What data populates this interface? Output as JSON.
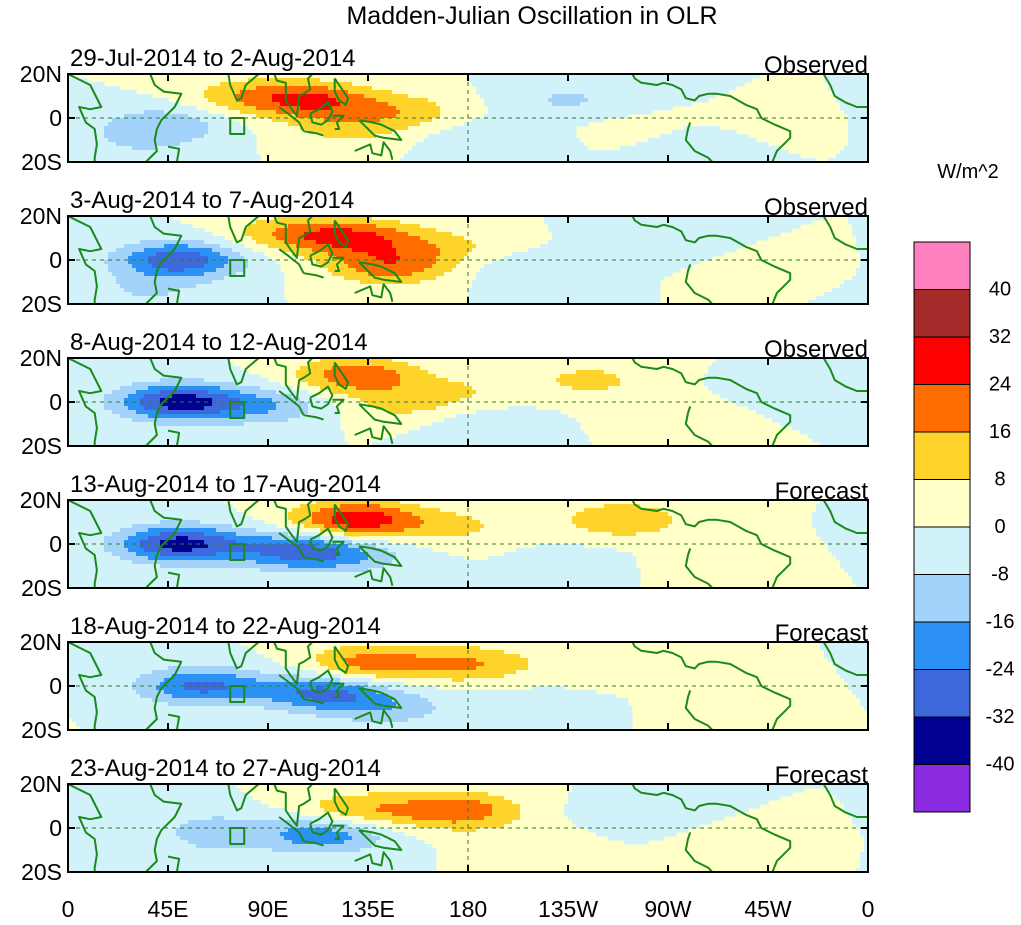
{
  "chart_data": {
    "type": "heatmap",
    "title": "Madden-Julian Oscillation in OLR",
    "units": "W/m^2",
    "x_range": [
      0,
      360
    ],
    "y_range": [
      -20,
      20
    ],
    "x_ticks": [
      "0",
      "45E",
      "90E",
      "135E",
      "180",
      "135W",
      "90W",
      "45W",
      "0"
    ],
    "y_ticks": [
      "20N",
      "0",
      "20S"
    ],
    "colorbar": {
      "levels": [
        "40",
        "32",
        "24",
        "16",
        "8",
        "0",
        "-8",
        "-16",
        "-24",
        "-32",
        "-40"
      ],
      "colors": [
        "#ff7fbf",
        "#a52a2a",
        "#ff0000",
        "#ff6d00",
        "#ffd42a",
        "#ffffc7",
        "#d2f2fa",
        "#a3d2fa",
        "#2c91f5",
        "#3d69dc",
        "#000091",
        "#8a2be2"
      ]
    },
    "panels": [
      {
        "dates": "29-Jul-2014 to 2-Aug-2014",
        "kind": "Observed",
        "anomalies": [
          {
            "lon": 110,
            "lat": 8,
            "value": 22
          },
          {
            "lon": 80,
            "lat": 10,
            "value": 12
          },
          {
            "lon": 150,
            "lat": 3,
            "value": 12
          },
          {
            "lon": 125,
            "lat": -5,
            "value": 9
          },
          {
            "lon": 43,
            "lat": -3,
            "value": -14
          },
          {
            "lon": 30,
            "lat": -12,
            "value": -6
          },
          {
            "lon": 190,
            "lat": -10,
            "value": -8
          },
          {
            "lon": 225,
            "lat": 8,
            "value": -9
          },
          {
            "lon": 290,
            "lat": -15,
            "value": -8
          },
          {
            "lon": 250,
            "lat": -5,
            "value": 3
          },
          {
            "lon": 320,
            "lat": -8,
            "value": 4
          }
        ]
      },
      {
        "dates": "3-Aug-2014 to 7-Aug-2014",
        "kind": "Observed",
        "anomalies": [
          {
            "lon": 100,
            "lat": 12,
            "value": 14
          },
          {
            "lon": 130,
            "lat": 10,
            "value": 22
          },
          {
            "lon": 145,
            "lat": -3,
            "value": 20
          },
          {
            "lon": 170,
            "lat": 6,
            "value": 9
          },
          {
            "lon": 50,
            "lat": 0,
            "value": -30
          },
          {
            "lon": 35,
            "lat": -14,
            "value": -8
          },
          {
            "lon": 200,
            "lat": -4,
            "value": -5
          },
          {
            "lon": 268,
            "lat": 12,
            "value": -6
          },
          {
            "lon": 325,
            "lat": -2,
            "value": 3
          }
        ]
      },
      {
        "dates": "8-Aug-2014 to 12-Aug-2014",
        "kind": "Observed",
        "anomalies": [
          {
            "lon": 130,
            "lat": 12,
            "value": 22
          },
          {
            "lon": 150,
            "lat": -2,
            "value": 9
          },
          {
            "lon": 175,
            "lat": 5,
            "value": 7
          },
          {
            "lon": 50,
            "lat": 0,
            "value": -35
          },
          {
            "lon": 90,
            "lat": -2,
            "value": -14
          },
          {
            "lon": 185,
            "lat": -10,
            "value": -6
          },
          {
            "lon": 235,
            "lat": 10,
            "value": 10
          },
          {
            "lon": 270,
            "lat": -5,
            "value": 5
          },
          {
            "lon": 320,
            "lat": 5,
            "value": -3
          }
        ]
      },
      {
        "dates": "13-Aug-2014 to 17-Aug-2014",
        "kind": "Forecast",
        "anomalies": [
          {
            "lon": 130,
            "lat": 11,
            "value": 30
          },
          {
            "lon": 175,
            "lat": 8,
            "value": 9
          },
          {
            "lon": 50,
            "lat": 0,
            "value": -35
          },
          {
            "lon": 100,
            "lat": -3,
            "value": -22
          },
          {
            "lon": 125,
            "lat": -5,
            "value": -14
          },
          {
            "lon": 250,
            "lat": 11,
            "value": 15
          },
          {
            "lon": 290,
            "lat": -8,
            "value": 5
          },
          {
            "lon": 230,
            "lat": -8,
            "value": -3
          }
        ]
      },
      {
        "dates": "18-Aug-2014 to 22-Aug-2014",
        "kind": "Forecast",
        "anomalies": [
          {
            "lon": 135,
            "lat": 10,
            "value": 20
          },
          {
            "lon": 180,
            "lat": 10,
            "value": 16
          },
          {
            "lon": 60,
            "lat": 0,
            "value": -26
          },
          {
            "lon": 115,
            "lat": -3,
            "value": -26
          },
          {
            "lon": 145,
            "lat": -10,
            "value": -12
          },
          {
            "lon": 240,
            "lat": 10,
            "value": 7
          },
          {
            "lon": 300,
            "lat": -8,
            "value": 4
          },
          {
            "lon": 210,
            "lat": -8,
            "value": -3
          }
        ]
      },
      {
        "dates": "23-Aug-2014 to 27-Aug-2014",
        "kind": "Forecast",
        "anomalies": [
          {
            "lon": 175,
            "lat": 8,
            "value": 22
          },
          {
            "lon": 130,
            "lat": 8,
            "value": 15
          },
          {
            "lon": 115,
            "lat": -3,
            "value": -22
          },
          {
            "lon": 65,
            "lat": 0,
            "value": -10
          },
          {
            "lon": 60,
            "lat": -12,
            "value": -5
          },
          {
            "lon": 210,
            "lat": -5,
            "value": 4
          },
          {
            "lon": 250,
            "lat": 5,
            "value": -4
          },
          {
            "lon": 300,
            "lat": -8,
            "value": 3
          }
        ]
      }
    ]
  }
}
